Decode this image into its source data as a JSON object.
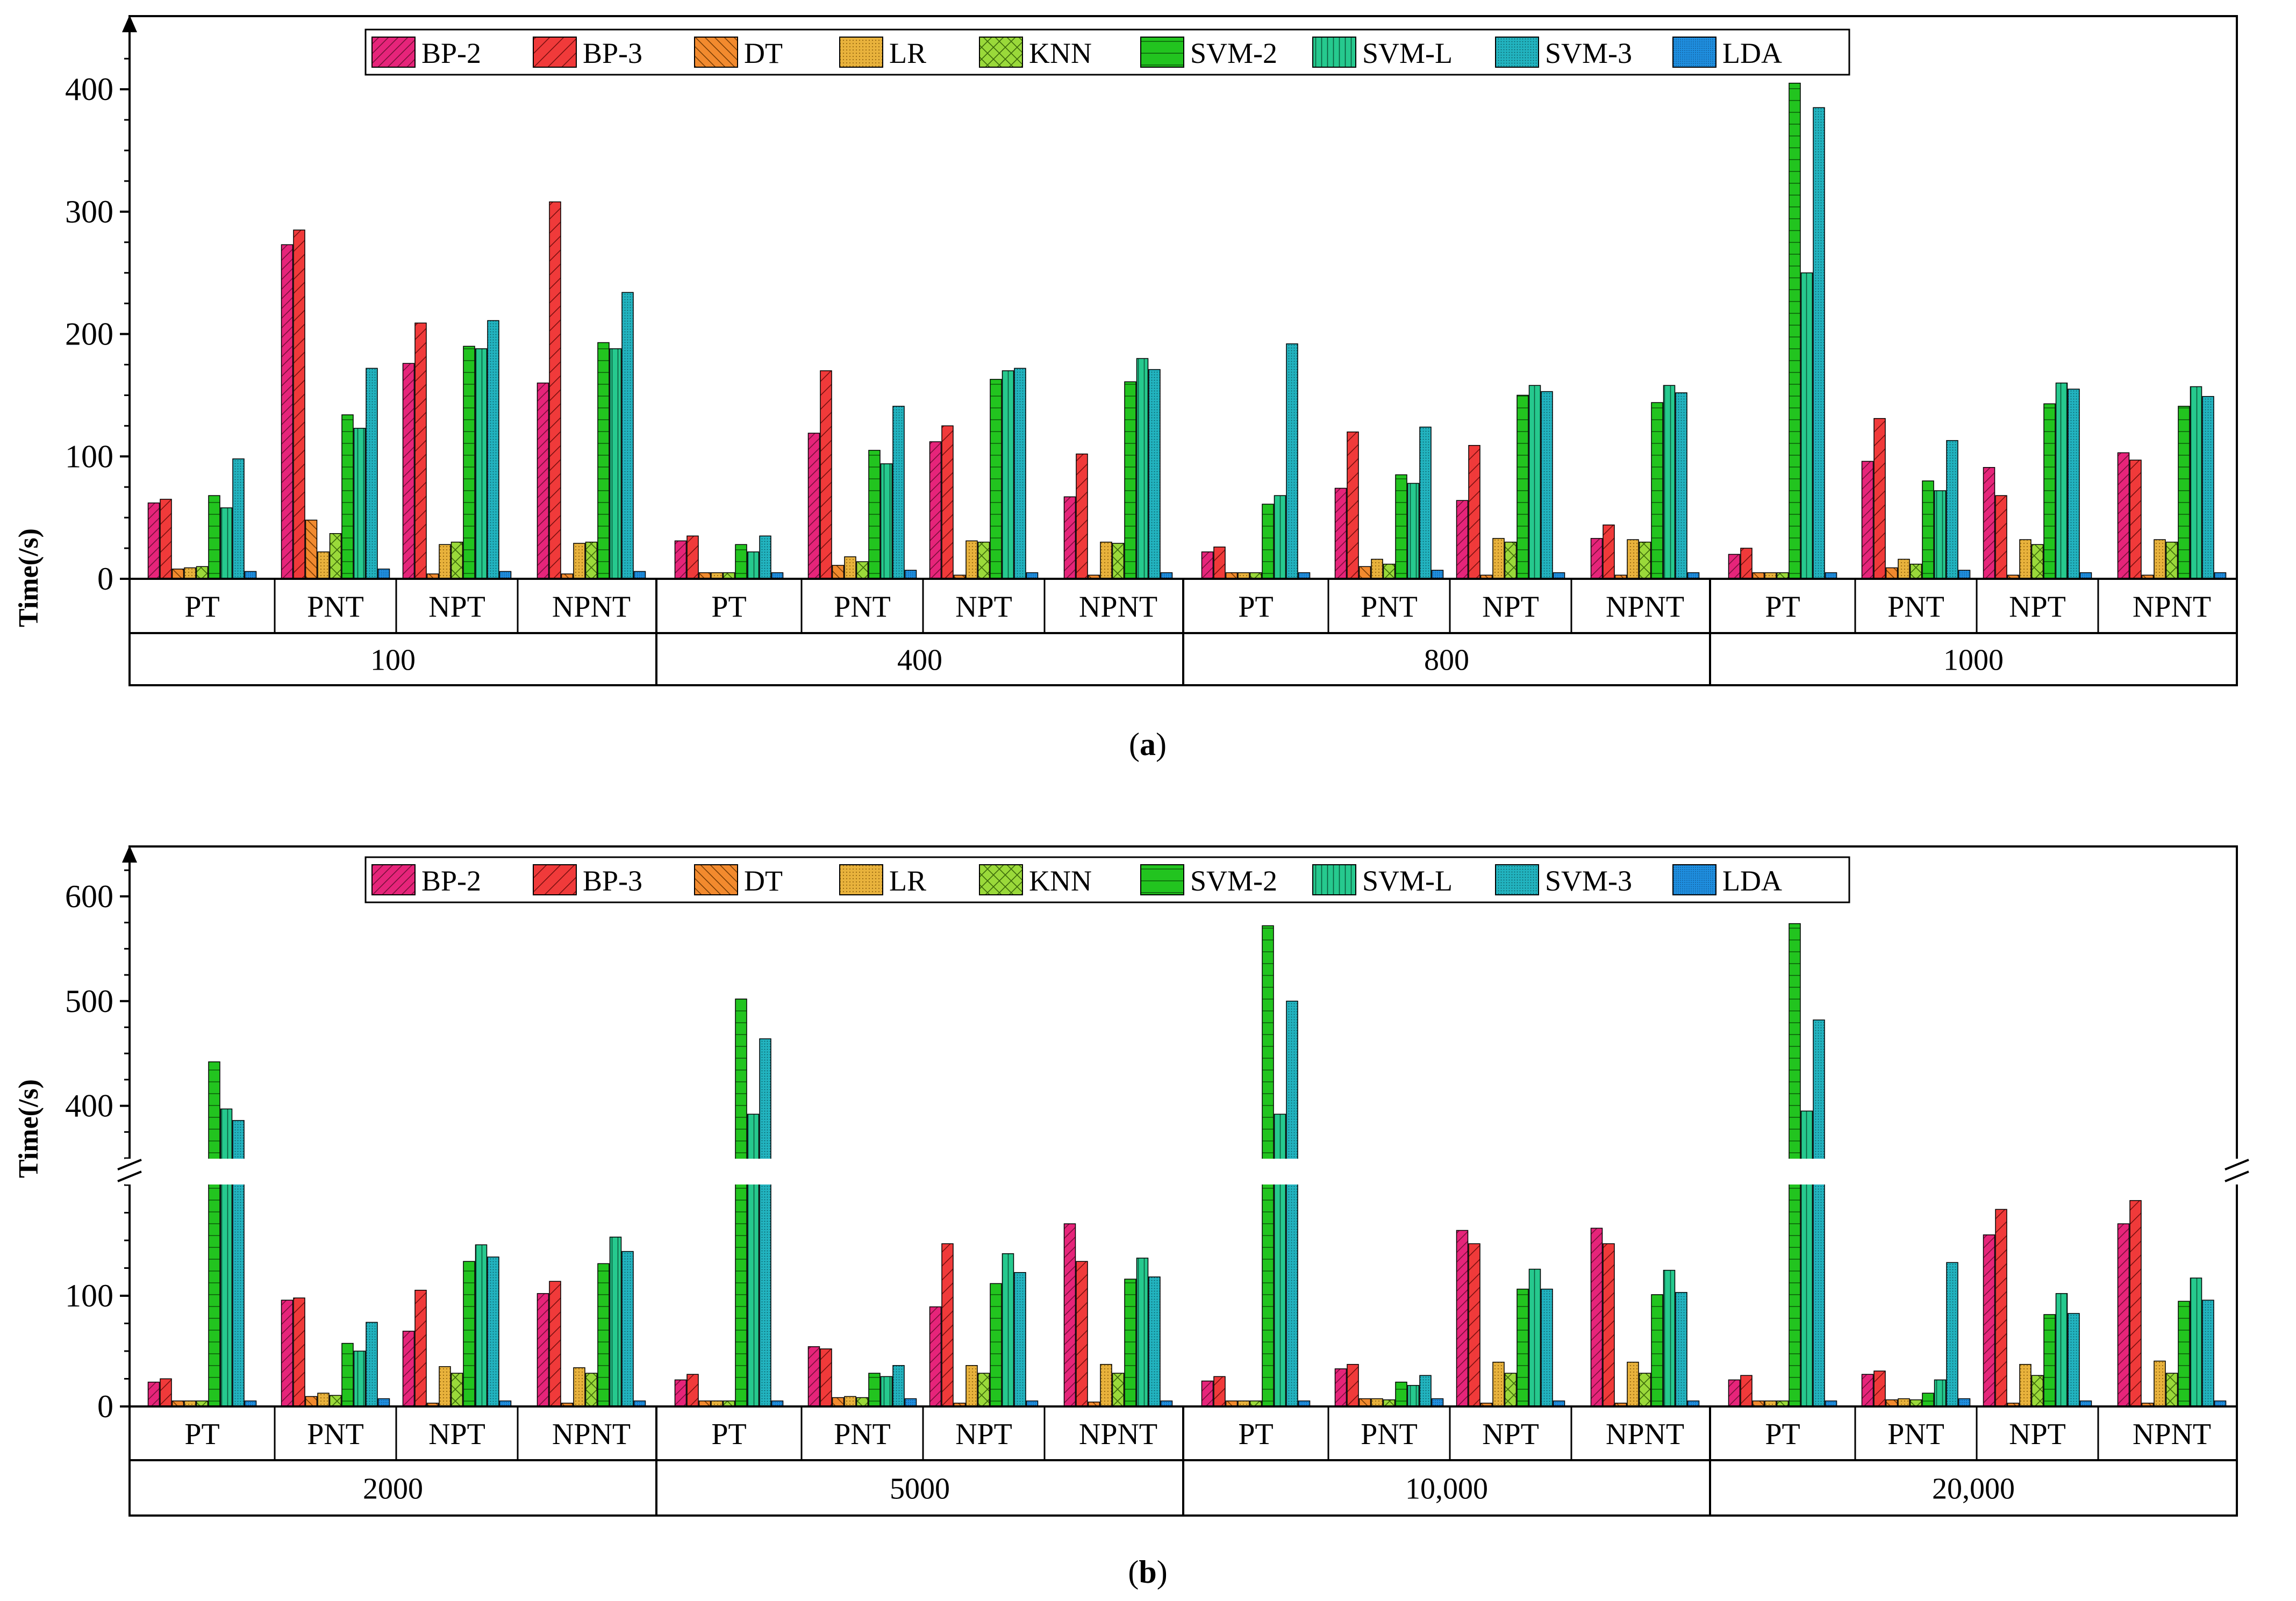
{
  "colors": {
    "BP-2": "#e6247a",
    "BP-3": "#f03a3a",
    "DT": "#f28a2e",
    "LR": "#e8b23c",
    "KNN": "#9ad93a",
    "SVM-2": "#22c41f",
    "SVM-L": "#26c98e",
    "SVM-3": "#22b3bf",
    "LDA": "#1f8fe0"
  },
  "chart_data": [
    {
      "type": "bar",
      "panel_label": "a",
      "ylabel": "Time(/s)",
      "ylim": [
        0,
        440
      ],
      "yticks": [
        0,
        100,
        200,
        300,
        400
      ],
      "legend": [
        "BP-2",
        "BP-3",
        "DT",
        "LR",
        "KNN",
        "SVM-2",
        "SVM-L",
        "SVM-3",
        "LDA"
      ],
      "legend_position": "top-center",
      "sub_categories": [
        "PT",
        "PNT",
        "NPT",
        "NPNT"
      ],
      "groups": [
        {
          "label": "100",
          "values": [
            [
              62,
              65,
              8,
              9,
              10,
              68,
              58,
              98,
              6
            ],
            [
              273,
              285,
              48,
              22,
              37,
              134,
              123,
              172,
              8
            ],
            [
              176,
              209,
              4,
              28,
              30,
              190,
              188,
              211,
              6
            ],
            [
              160,
              308,
              4,
              29,
              30,
              193,
              188,
              234,
              6
            ]
          ]
        },
        {
          "label": "400",
          "values": [
            [
              31,
              35,
              5,
              5,
              5,
              28,
              22,
              35,
              5
            ],
            [
              119,
              170,
              11,
              18,
              14,
              105,
              94,
              141,
              7
            ],
            [
              112,
              125,
              3,
              31,
              30,
              163,
              170,
              172,
              5
            ],
            [
              67,
              102,
              3,
              30,
              29,
              161,
              180,
              171,
              5
            ]
          ]
        },
        {
          "label": "800",
          "values": [
            [
              22,
              26,
              5,
              5,
              5,
              61,
              68,
              192,
              5
            ],
            [
              74,
              120,
              10,
              16,
              12,
              85,
              78,
              124,
              7
            ],
            [
              64,
              109,
              3,
              33,
              30,
              150,
              158,
              153,
              5
            ],
            [
              33,
              44,
              3,
              32,
              30,
              144,
              158,
              152,
              5
            ]
          ]
        },
        {
          "label": "1000",
          "values": [
            [
              20,
              25,
              5,
              5,
              5,
              405,
              250,
              385,
              5
            ],
            [
              96,
              131,
              9,
              16,
              12,
              80,
              72,
              113,
              7
            ],
            [
              91,
              68,
              3,
              32,
              28,
              143,
              160,
              155,
              5
            ],
            [
              103,
              97,
              3,
              32,
              30,
              141,
              157,
              149,
              5
            ]
          ]
        }
      ]
    },
    {
      "type": "bar",
      "panel_label": "b",
      "ylabel": "Time(/s)",
      "axis_break": true,
      "lower_ylim": [
        0,
        200
      ],
      "upper_ylim": [
        350,
        640
      ],
      "yticks": [
        0,
        100,
        400,
        500,
        600
      ],
      "legend": [
        "BP-2",
        "BP-3",
        "DT",
        "LR",
        "KNN",
        "SVM-2",
        "SVM-L",
        "SVM-3",
        "LDA"
      ],
      "legend_position": "top-center",
      "sub_categories": [
        "PT",
        "PNT",
        "NPT",
        "NPNT"
      ],
      "groups": [
        {
          "label": "2000",
          "values": [
            [
              22,
              25,
              5,
              5,
              5,
              442,
              397,
              386,
              5
            ],
            [
              96,
              98,
              9,
              12,
              10,
              57,
              50,
              76,
              7
            ],
            [
              68,
              105,
              3,
              36,
              30,
              131,
              146,
              135,
              5
            ],
            [
              102,
              113,
              3,
              35,
              30,
              129,
              153,
              140,
              5
            ]
          ]
        },
        {
          "label": "5000",
          "values": [
            [
              24,
              29,
              5,
              5,
              5,
              502,
              392,
              464,
              5
            ],
            [
              54,
              52,
              8,
              9,
              8,
              30,
              27,
              37,
              7
            ],
            [
              90,
              147,
              3,
              37,
              30,
              111,
              138,
              121,
              5
            ],
            [
              165,
              131,
              4,
              38,
              30,
              115,
              134,
              117,
              5
            ]
          ]
        },
        {
          "label": "10,000",
          "values": [
            [
              23,
              27,
              5,
              5,
              5,
              572,
              392,
              500,
              5
            ],
            [
              34,
              38,
              7,
              7,
              6,
              22,
              19,
              28,
              7
            ],
            [
              159,
              147,
              3,
              40,
              30,
              106,
              124,
              106,
              5
            ],
            [
              161,
              147,
              3,
              40,
              30,
              101,
              123,
              103,
              5
            ]
          ]
        },
        {
          "label": "20,000",
          "values": [
            [
              24,
              28,
              5,
              5,
              5,
              574,
              395,
              482,
              5
            ],
            [
              29,
              32,
              6,
              7,
              6,
              12,
              24,
              130,
              7
            ],
            [
              155,
              178,
              3,
              38,
              28,
              83,
              102,
              84,
              5
            ],
            [
              165,
              186,
              3,
              41,
              30,
              95,
              116,
              96,
              5
            ]
          ]
        }
      ]
    }
  ]
}
